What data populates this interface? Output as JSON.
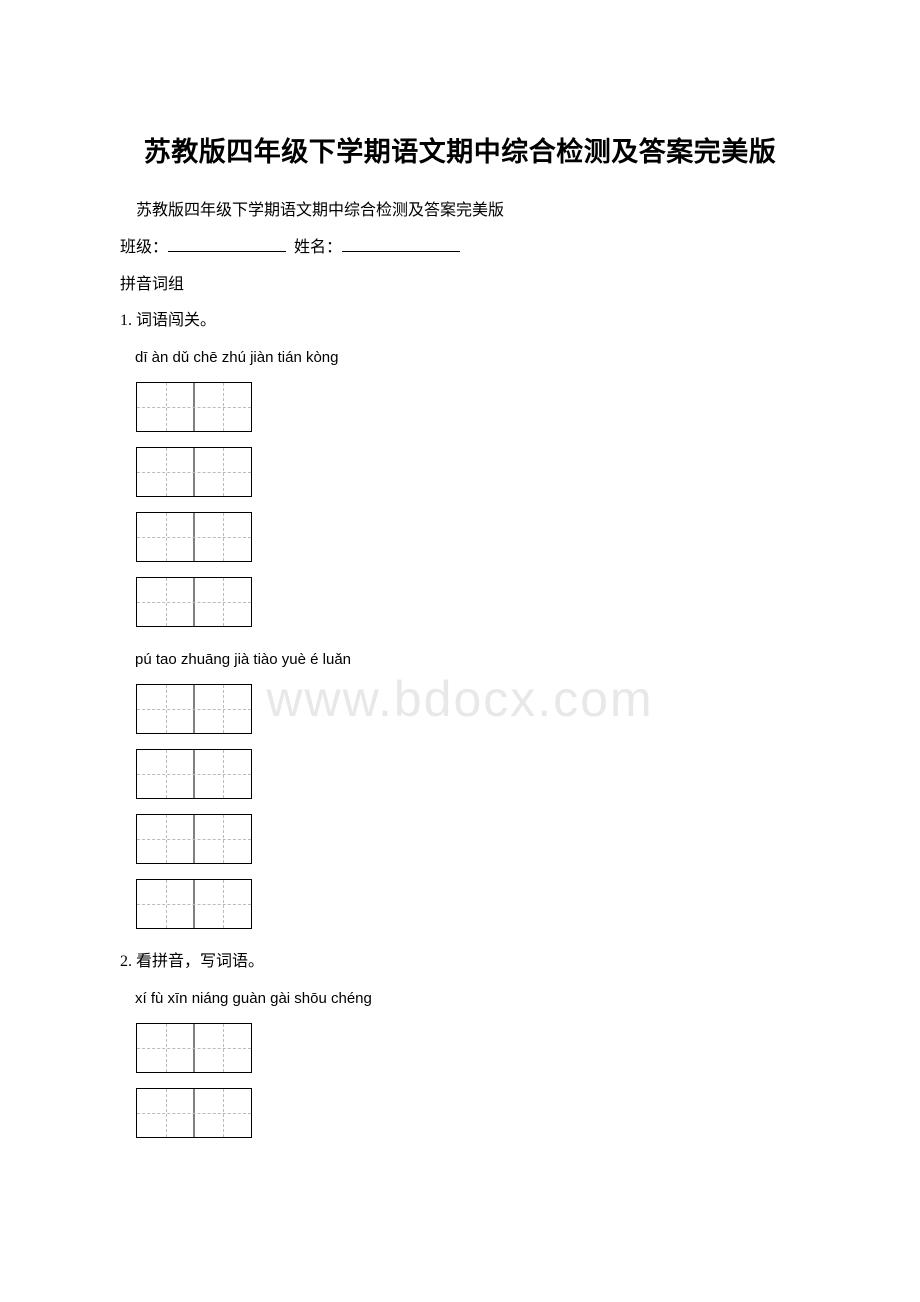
{
  "title": "苏教版四年级下学期语文期中综合检测及答案完美版",
  "subtitle": "苏教版四年级下学期语文期中综合检测及答案完美版",
  "form": {
    "class_label": "班级：",
    "name_label": "姓名："
  },
  "section_header": "拼音词组",
  "q1": {
    "label": "1. 词语闯关。",
    "pinyin1": "dī àn   dǔ chē  zhú jiàn  tián kòng",
    "pinyin2": "pú tao   zhuāng jià   tiào yuè  é luǎn"
  },
  "q2": {
    "label": "2. 看拼音，写词语。",
    "pinyin1": "xí fù  xīn niáng  guàn gài  shōu chéng"
  },
  "watermark": "www.bdocx.com"
}
